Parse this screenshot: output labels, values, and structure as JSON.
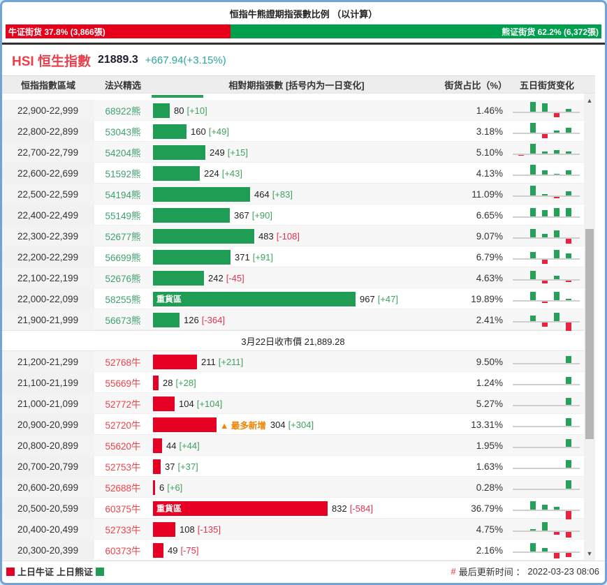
{
  "title": "恒指牛熊證期指張數比例 （以计算）",
  "banner": {
    "bull_label": "牛证街货 37.8% (3,866張)",
    "bear_label": "熊证街货 62.2% (6,372張)",
    "bull_percent": 37.8,
    "bear_percent": 62.2,
    "bull_color": "#e60019",
    "bear_color": "#009f4d"
  },
  "hsi": {
    "name": "HSI 恒生指數",
    "price": "21889.3",
    "change": "+667.94(+3.15%)"
  },
  "table": {
    "columns": [
      "恒指指數區域",
      "法兴精选",
      "相對期指張數 [括号内为一日变化]",
      "街货占比（%）",
      "五日街货变化"
    ],
    "heavy_zone_label": "重貨區",
    "rows": [
      {
        "range": "22,900-22,999",
        "code": "68922熊",
        "code_type": "bear",
        "bar": {
          "value": 80,
          "value_label": "80",
          "change": "[+10]",
          "dir": "up"
        },
        "percent": "1.46%",
        "five_day": [
          0,
          3,
          2.6,
          -1.2,
          0.9
        ]
      },
      {
        "range": "22,800-22,899",
        "code": "53043熊",
        "code_type": "bear",
        "bar": {
          "value": 160,
          "value_label": "160",
          "change": "[+49]",
          "dir": "up"
        },
        "percent": "3.18%",
        "five_day": [
          0,
          3,
          -1.3,
          0.6,
          1.4
        ]
      },
      {
        "range": "22,700-22,799",
        "code": "54204熊",
        "code_type": "bear",
        "bar": {
          "value": 249,
          "value_label": "249",
          "change": "[+15]",
          "dir": "up"
        },
        "percent": "5.10%",
        "five_day": [
          -0.3,
          3,
          0.7,
          1,
          0.7
        ]
      },
      {
        "range": "22,600-22,699",
        "code": "51592熊",
        "code_type": "bear",
        "bar": {
          "value": 224,
          "value_label": "224",
          "change": "[+43]",
          "dir": "up"
        },
        "percent": "4.13%",
        "five_day": [
          0,
          3,
          1.2,
          0.3,
          1.2
        ]
      },
      {
        "range": "22,500-22,599",
        "code": "54194熊",
        "code_type": "bear",
        "bar": {
          "value": 464,
          "value_label": "464",
          "change": "[+83]",
          "dir": "up"
        },
        "percent": "11.09%",
        "five_day": [
          0,
          3,
          0.5,
          -0.5,
          1.3
        ]
      },
      {
        "range": "22,400-22,499",
        "code": "55149熊",
        "code_type": "bear",
        "bar": {
          "value": 367,
          "value_label": "367",
          "change": "[+90]",
          "dir": "up"
        },
        "percent": "6.65%",
        "five_day": [
          0,
          2.6,
          1.8,
          2.6,
          2.6
        ]
      },
      {
        "range": "22,300-22,399",
        "code": "52677熊",
        "code_type": "bear",
        "bar": {
          "value": 483,
          "value_label": "483",
          "change": "[-108]",
          "dir": "down"
        },
        "percent": "9.07%",
        "five_day": [
          0,
          2.6,
          1,
          2,
          -1.5
        ]
      },
      {
        "range": "22,200-22,299",
        "code": "56699熊",
        "code_type": "bear",
        "bar": {
          "value": 371,
          "value_label": "371",
          "change": "[+91]",
          "dir": "up"
        },
        "percent": "6.79%",
        "five_day": [
          0,
          1.8,
          -1.2,
          2.6,
          1.5
        ]
      },
      {
        "range": "22,100-22,199",
        "code": "52676熊",
        "code_type": "bear",
        "bar": {
          "value": 242,
          "value_label": "242",
          "change": "[-45]",
          "dir": "down"
        },
        "percent": "4.63%",
        "five_day": [
          0,
          2.6,
          -0.8,
          1,
          -0.4
        ]
      },
      {
        "range": "22,000-22,099",
        "code": "58255熊",
        "code_type": "bear",
        "bar": {
          "value": 967,
          "value_label": "967",
          "change": "[+47]",
          "dir": "up",
          "heavy": true
        },
        "percent": "19.89%",
        "five_day": [
          0,
          2.6,
          -0.4,
          2.4,
          0.4
        ]
      },
      {
        "range": "21,900-21,999",
        "code": "56673熊",
        "code_type": "bear",
        "bar": {
          "value": 126,
          "value_label": "126",
          "change": "[-364]",
          "dir": "down"
        },
        "percent": "2.41%",
        "five_day": [
          0,
          1.6,
          -1.2,
          2.6,
          -2.6
        ]
      },
      {
        "type": "divider",
        "label": "3月22日收市價 21,889.28"
      },
      {
        "range": "21,200-21,299",
        "code": "52768牛",
        "code_type": "bull",
        "bar": {
          "value": 211,
          "value_label": "211",
          "change": "[+211]",
          "dir": "up"
        },
        "percent": "9.50%",
        "five_day": [
          0,
          0,
          0,
          0,
          2
        ]
      },
      {
        "range": "21,100-21,199",
        "code": "55669牛",
        "code_type": "bull",
        "bar": {
          "value": 28,
          "value_label": "28",
          "change": "[+28]",
          "dir": "up"
        },
        "percent": "1.24%",
        "five_day": [
          0,
          0,
          0,
          0,
          2
        ]
      },
      {
        "range": "21,000-21,099",
        "code": "52772牛",
        "code_type": "bull",
        "bar": {
          "value": 104,
          "value_label": "104",
          "change": "[+104]",
          "dir": "up"
        },
        "percent": "5.27%",
        "five_day": [
          0,
          0,
          0,
          0,
          2
        ]
      },
      {
        "range": "20,900-20,999",
        "code": "52720牛",
        "code_type": "bull",
        "bar": {
          "value": 304,
          "value_label": "304",
          "change": "[+304]",
          "dir": "up",
          "annotation": "▲ 最多新增"
        },
        "percent": "13.31%",
        "five_day": [
          0,
          0,
          0,
          0,
          2.2
        ]
      },
      {
        "range": "20,800-20,899",
        "code": "55620牛",
        "code_type": "bull",
        "bar": {
          "value": 44,
          "value_label": "44",
          "change": "[+44]",
          "dir": "up"
        },
        "percent": "1.95%",
        "five_day": [
          0,
          0,
          0,
          0,
          2.2
        ]
      },
      {
        "range": "20,700-20,799",
        "code": "52753牛",
        "code_type": "bull",
        "bar": {
          "value": 37,
          "value_label": "37",
          "change": "[+37]",
          "dir": "up"
        },
        "percent": "1.63%",
        "five_day": [
          0,
          0,
          0,
          0,
          2.2
        ]
      },
      {
        "range": "20,600-20,699",
        "code": "52688牛",
        "code_type": "bull",
        "bar": {
          "value": 6,
          "value_label": "6",
          "change": "[+6]",
          "dir": "up"
        },
        "percent": "0.28%",
        "five_day": [
          0,
          0,
          0,
          0,
          2.4
        ]
      },
      {
        "range": "20,500-20,599",
        "code": "60375牛",
        "code_type": "bull",
        "bar": {
          "value": 832,
          "value_label": "832",
          "change": "[-584]",
          "dir": "down",
          "heavy": true
        },
        "percent": "36.79%",
        "five_day": [
          0,
          2.6,
          1.5,
          0.8,
          -2.6
        ]
      },
      {
        "range": "20,400-20,499",
        "code": "52733牛",
        "code_type": "bull",
        "bar": {
          "value": 108,
          "value_label": "108",
          "change": "[-135]",
          "dir": "down"
        },
        "percent": "4.75%",
        "five_day": [
          0,
          0.4,
          2.6,
          -0.8,
          -1.6
        ]
      },
      {
        "range": "20,300-20,399",
        "code": "60373牛",
        "code_type": "bull",
        "bar": {
          "value": 49,
          "value_label": "49",
          "change": "[-75]",
          "dir": "down"
        },
        "percent": "2.16%",
        "five_day": [
          0,
          2.6,
          1,
          -1.6,
          -1.3
        ]
      }
    ]
  },
  "icons": {
    "scroll_up": "▲",
    "scroll_down": "▼"
  },
  "footer": {
    "legend_bull": "上日牛证",
    "legend_bear": "上日熊证",
    "hash": "#",
    "update_label": "最后更新时间 ：",
    "update_value": "2022-03-23 08:06"
  },
  "colors": {
    "bull_red": "#e60023",
    "bear_green": "#1f9d55",
    "annotation_orange": "#f08300",
    "change_up": "#3da35d",
    "change_down": "#e5314d",
    "frame_blue": "#6fa4d8"
  }
}
